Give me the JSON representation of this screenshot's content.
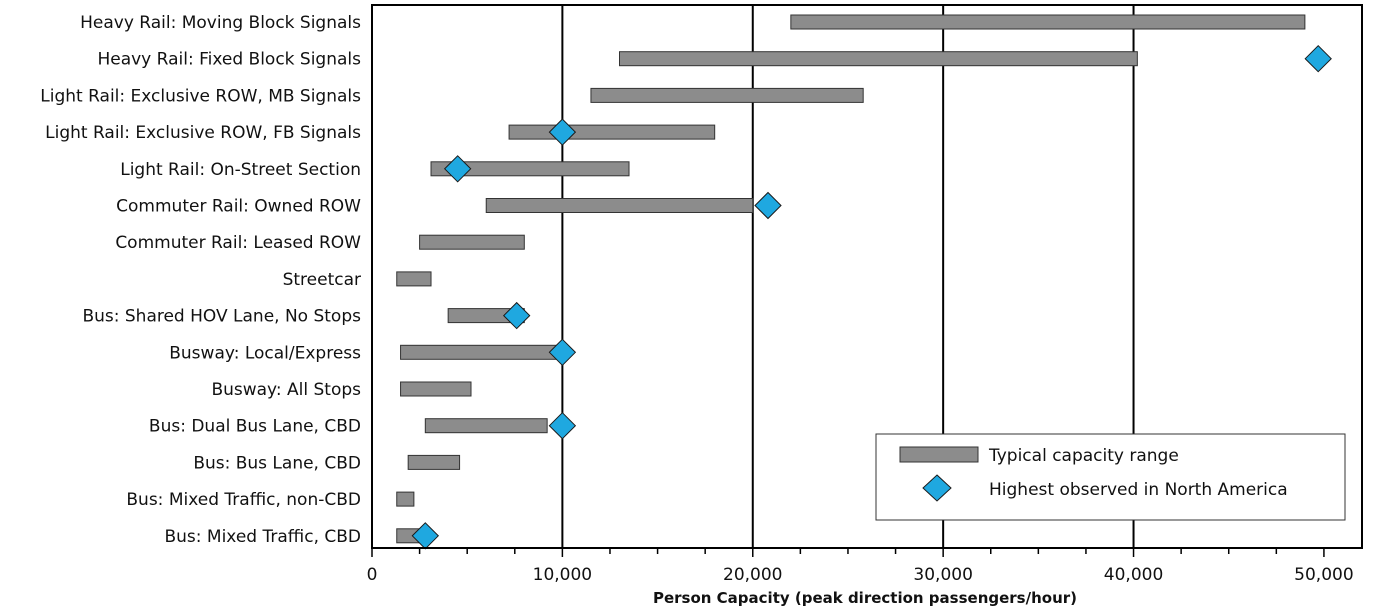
{
  "chart_data": {
    "type": "bar",
    "subtype": "horizontal-range",
    "title": "",
    "xlabel": "Person Capacity (peak direction passengers/hour)",
    "ylabel": "",
    "xlim": [
      0,
      52000
    ],
    "x_ticks": [
      0,
      10000,
      20000,
      30000,
      40000,
      50000
    ],
    "x_tick_labels": [
      "0",
      "10,000",
      "20,000",
      "30,000",
      "40,000",
      "50,000"
    ],
    "gridlines_at": [
      10000,
      20000,
      30000,
      40000
    ],
    "grid": true,
    "legend_position": "bottom-right",
    "legend": {
      "range_label": "Typical capacity range",
      "observed_label": "Highest observed in North America"
    },
    "colors": {
      "range_bar": "#8c8c8c",
      "range_border": "#333333",
      "observed_marker": "#1fa8e0",
      "observed_border": "#1a1a1a",
      "axis": "#000000"
    },
    "categories": [
      "Heavy Rail: Moving Block Signals",
      "Heavy Rail: Fixed Block Signals",
      "Light Rail: Exclusive ROW, MB Signals",
      "Light Rail: Exclusive ROW, FB Signals",
      "Light Rail: On-Street Section",
      "Commuter Rail: Owned ROW",
      "Commuter Rail: Leased ROW",
      "Streetcar",
      "Bus: Shared HOV Lane, No Stops",
      "Busway: Local/Express",
      "Busway: All Stops",
      "Bus: Dual Bus Lane, CBD",
      "Bus: Bus Lane, CBD",
      "Bus: Mixed Traffic, non-CBD",
      "Bus: Mixed Traffic, CBD"
    ],
    "series": [
      {
        "name": "Typical capacity range",
        "ranges": [
          [
            22000,
            49000
          ],
          [
            13000,
            40200
          ],
          [
            11500,
            25800
          ],
          [
            7200,
            18000
          ],
          [
            3100,
            13500
          ],
          [
            6000,
            20000
          ],
          [
            2500,
            8000
          ],
          [
            1300,
            3100
          ],
          [
            4000,
            8000
          ],
          [
            1500,
            10000
          ],
          [
            1500,
            5200
          ],
          [
            2800,
            9200
          ],
          [
            1900,
            4600
          ],
          [
            1300,
            2200
          ],
          [
            1300,
            2700
          ]
        ]
      },
      {
        "name": "Highest observed in North America",
        "values": [
          null,
          49700,
          null,
          10000,
          4500,
          20800,
          null,
          null,
          7600,
          10000,
          null,
          10000,
          null,
          null,
          2800
        ]
      }
    ]
  }
}
